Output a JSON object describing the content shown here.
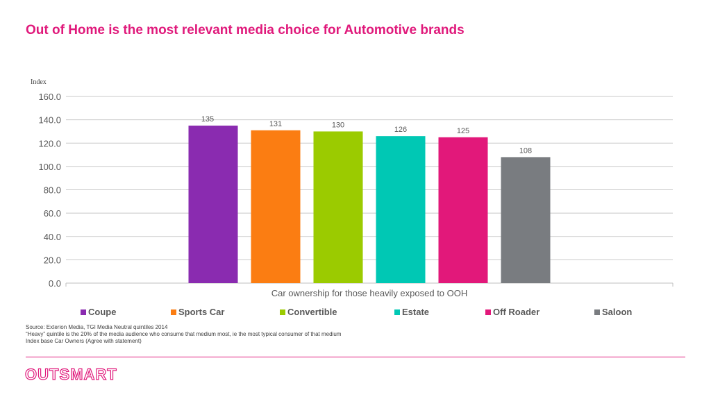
{
  "page": {
    "title": "Out of Home is the most relevant media choice for Automotive brands",
    "notes": [
      "Source: Exterion Media, TGI Media Neutral quintiles 2014",
      "“Heavy” quintile is the 20% of the media audience who consume that medium most, ie the most typical consumer of that medium",
      "Index base Car Owners (Agree with statement)"
    ],
    "logo": "OUTSMART"
  },
  "colors": {
    "accent": "#e0197b"
  },
  "chart_data": {
    "type": "bar",
    "xlabel": "Car ownership for those heavily exposed to OOH",
    "ylabel": "Index",
    "ylim": [
      0,
      160
    ],
    "yticks": [
      "0.0",
      "20.0",
      "40.0",
      "60.0",
      "80.0",
      "100.0",
      "120.0",
      "140.0",
      "160.0"
    ],
    "grid": true,
    "legend_position": "bottom",
    "series": [
      {
        "name": "Coupe",
        "value": 135,
        "label": "135",
        "color": "#8a2bb0"
      },
      {
        "name": "Sports Car",
        "value": 131,
        "label": "131",
        "color": "#fb7d12"
      },
      {
        "name": "Convertible",
        "value": 130,
        "label": "130",
        "color": "#9bcb00"
      },
      {
        "name": "Estate",
        "value": 126,
        "label": "126",
        "color": "#00c8b4"
      },
      {
        "name": "Off Roader",
        "value": 125,
        "label": "125",
        "color": "#e2187a"
      },
      {
        "name": "Saloon",
        "value": 108,
        "label": "108",
        "color": "#797c80"
      }
    ]
  }
}
